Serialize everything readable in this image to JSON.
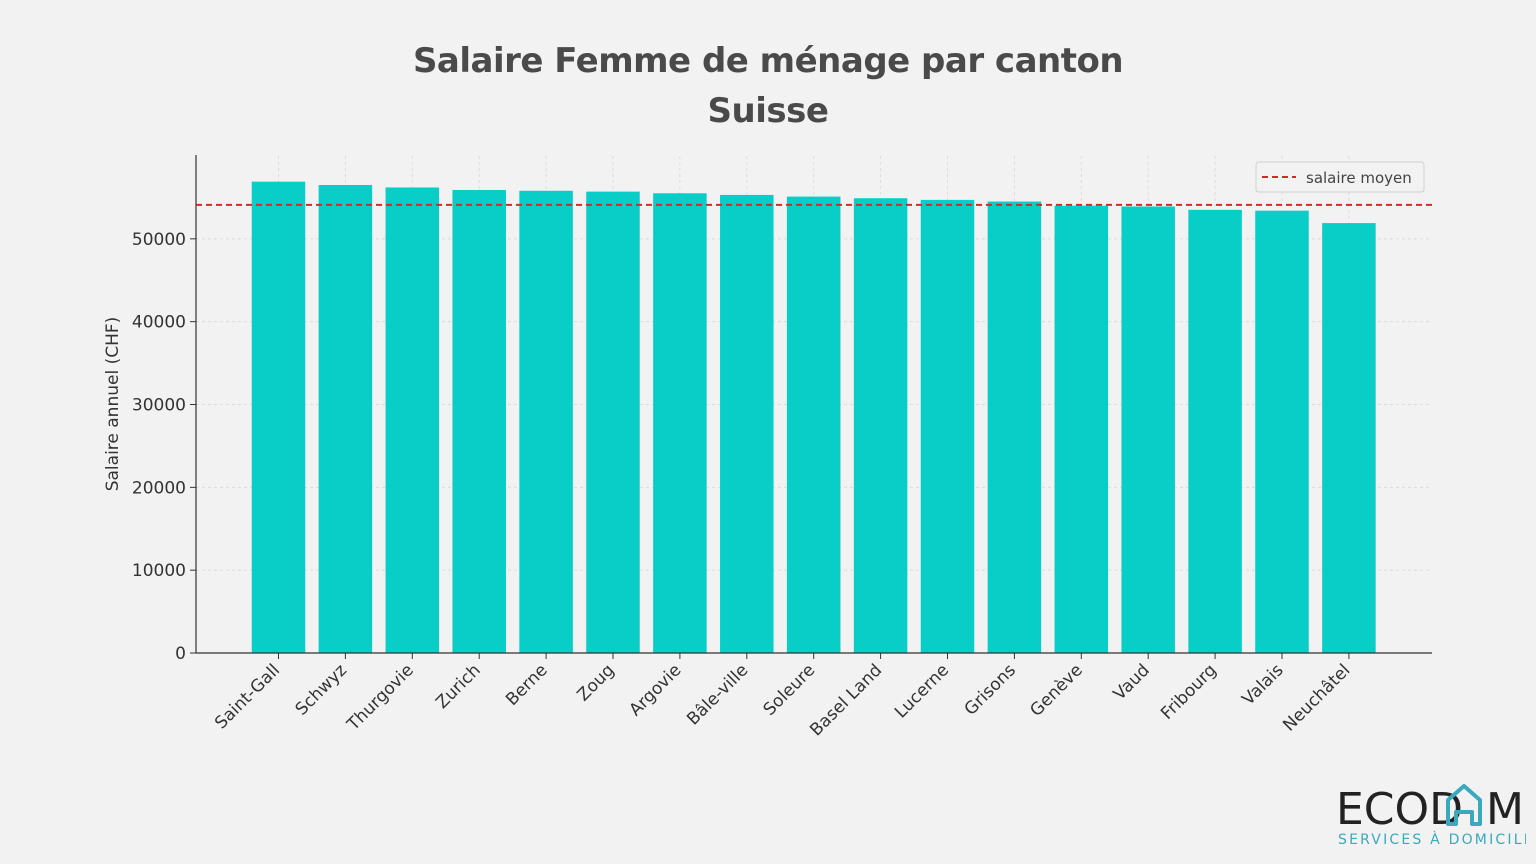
{
  "chart_data": {
    "type": "bar",
    "title": "Salaire Femme de ménage par canton",
    "subtitle": "Suisse",
    "xlabel": "",
    "ylabel": "Salaire annuel (CHF)",
    "ylim": [
      0,
      60000
    ],
    "yticks": [
      0,
      10000,
      20000,
      30000,
      40000,
      50000
    ],
    "categories": [
      "Saint-Gall",
      "Schwyz",
      "Thurgovie",
      "Zurich",
      "Berne",
      "Zoug",
      "Argovie",
      "Bâle-ville",
      "Soleure",
      "Basel Land",
      "Lucerne",
      "Grisons",
      "Genève",
      "Vaud",
      "Fribourg",
      "Valais",
      "Neuchâtel"
    ],
    "series": [
      {
        "values": [
          56900,
          56500,
          56200,
          55900,
          55800,
          55700,
          55500,
          55300,
          55100,
          54900,
          54700,
          54500,
          54000,
          53900,
          53500,
          53400,
          51900
        ]
      }
    ],
    "reference_line": {
      "label": "salaire moyen",
      "value": 54100,
      "color": "#d62728",
      "style": "dashed"
    },
    "bar_color": "#09cdc7",
    "grid": true,
    "legend_position": "top-right"
  },
  "logo": {
    "word": "ECODOM",
    "tagline": "SERVICES À DOMICILE"
  }
}
